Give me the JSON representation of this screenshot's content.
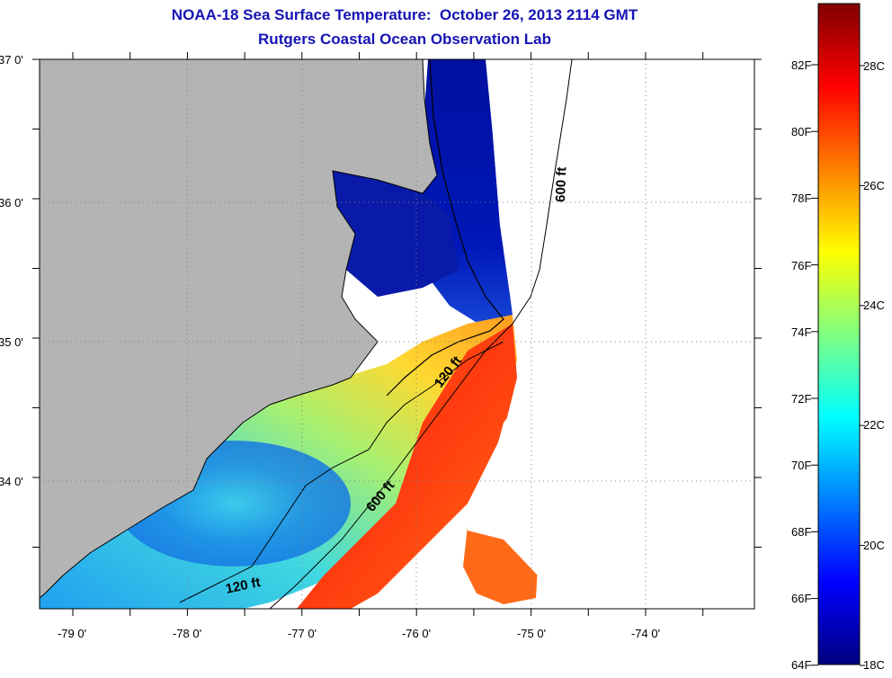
{
  "title": "NOAA-18 Sea Surface Temperature:  October 26, 2013 2114 GMT",
  "subtitle": "Rutgers Coastal Ocean Observation Lab",
  "map": {
    "lat_labels": [
      "37 0'",
      "36 0'",
      "35 0'",
      "34 0'"
    ],
    "lon_labels": [
      "-79 0'",
      "-78 0'",
      "-77 0'",
      "-76 0'",
      "-75 0'",
      "-74 0'"
    ],
    "contours": [
      {
        "label": "600 ft"
      },
      {
        "label": "120 ft"
      },
      {
        "label": "600 ft"
      },
      {
        "label": "120 ft"
      }
    ],
    "colors": {
      "land": "#b4b4b4",
      "cloud": "#ffffff",
      "coast": "#000000"
    }
  },
  "colorbar": {
    "fahrenheit_labels": [
      "82F",
      "80F",
      "78F",
      "76F",
      "74F",
      "72F",
      "70F",
      "68F",
      "66F",
      "64F"
    ],
    "celsius_labels": [
      "28C",
      "26C",
      "24C",
      "22C",
      "20C",
      "18C"
    ],
    "colors": [
      "#000080",
      "#0000ff",
      "#0080ff",
      "#00ffff",
      "#80ff80",
      "#ffff00",
      "#ff8000",
      "#ff0000",
      "#800000"
    ]
  }
}
